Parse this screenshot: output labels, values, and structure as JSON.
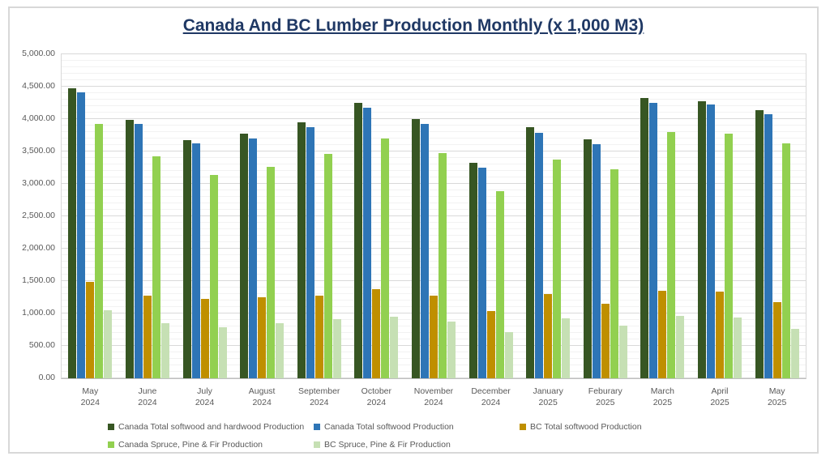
{
  "title": "Canada And BC Lumber Production Monthly (x 1,000 M3)",
  "colors": {
    "title": "#1F3864",
    "axis_text": "#595959",
    "gridline_major": "#D9D9D9",
    "gridline_minor": "#F2F2F2",
    "axis_line": "#BFBFBF",
    "frame_border": "#D8D8D8"
  },
  "chart_data": {
    "type": "bar",
    "categories": [
      {
        "month": "May",
        "year": "2024"
      },
      {
        "month": "June",
        "year": "2024"
      },
      {
        "month": "July",
        "year": "2024"
      },
      {
        "month": "August",
        "year": "2024"
      },
      {
        "month": "September",
        "year": "2024"
      },
      {
        "month": "October",
        "year": "2024"
      },
      {
        "month": "November",
        "year": "2024"
      },
      {
        "month": "December",
        "year": "2024"
      },
      {
        "month": "January",
        "year": "2025"
      },
      {
        "month": "Feburary",
        "year": "2025"
      },
      {
        "month": "March",
        "year": "2025"
      },
      {
        "month": "April",
        "year": "2025"
      },
      {
        "month": "May",
        "year": "2025"
      }
    ],
    "series": [
      {
        "name": "Canada Total softwood and hardwood Production",
        "color": "#375623",
        "values": [
          4480,
          3990,
          3680,
          3770,
          3950,
          4250,
          4000,
          3330,
          3870,
          3690,
          4320,
          4270,
          4140
        ]
      },
      {
        "name": "Canada Total softwood Production",
        "color": "#2E75B6",
        "values": [
          4410,
          3920,
          3620,
          3700,
          3880,
          4170,
          3920,
          3250,
          3790,
          3610,
          4250,
          4220,
          4080
        ]
      },
      {
        "name": "BC Total softwood Production",
        "color": "#BF8F00",
        "values": [
          1490,
          1280,
          1230,
          1250,
          1280,
          1380,
          1270,
          1040,
          1300,
          1150,
          1350,
          1340,
          1170
        ]
      },
      {
        "name": "Canada Spruce, Pine & Fir Production",
        "color": "#92D050",
        "values": [
          3930,
          3430,
          3140,
          3260,
          3460,
          3700,
          3470,
          2890,
          3380,
          3230,
          3800,
          3770,
          3620
        ]
      },
      {
        "name": "BC Spruce, Pine & Fir Production",
        "color": "#C6E0B4",
        "values": [
          1050,
          850,
          790,
          850,
          910,
          950,
          870,
          710,
          920,
          810,
          960,
          940,
          760
        ]
      }
    ],
    "ylim": [
      0,
      5000
    ],
    "y_ticks": [
      "0.00",
      "500.00",
      "1,000.00",
      "1,500.00",
      "2,000.00",
      "2,500.00",
      "3,000.00",
      "3,500.00",
      "4,000.00",
      "4,500.00",
      "5,000.00"
    ],
    "grid": {
      "major_step": 500,
      "minor_step": 100,
      "visible": true
    },
    "legend_position": "bottom"
  }
}
